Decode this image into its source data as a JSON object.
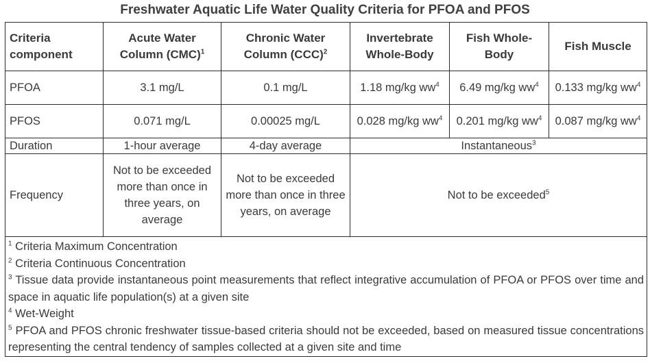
{
  "title": "Freshwater Aquatic Life Water Quality Criteria for PFOA and PFOS",
  "headers": {
    "component": "Criteria component",
    "acute": "Acute Water Column (CMC)",
    "acute_sup": "1",
    "chronic": "Chronic Water Column (CCC)",
    "chronic_sup": "2",
    "invert": "Invertebrate Whole-Body",
    "fish_whole": "Fish Whole-Body",
    "fish_muscle": "Fish Muscle"
  },
  "rows": {
    "pfoa": {
      "label": "PFOA",
      "acute": "3.1 mg/L",
      "chronic": "0.1 mg/L",
      "invert": "1.18 mg/kg ww",
      "fish_whole": "6.49 mg/kg ww",
      "fish_muscle": "0.133 mg/kg ww",
      "sup": "4"
    },
    "pfos": {
      "label": "PFOS",
      "acute": "0.071 mg/L",
      "chronic": "0.00025 mg/L",
      "invert": "0.028 mg/kg ww",
      "fish_whole": "0.201 mg/kg ww",
      "fish_muscle": "0.087 mg/kg ww",
      "sup": "4"
    },
    "duration": {
      "label": "Duration",
      "acute": "1-hour average",
      "chronic": "4-day average",
      "tissue": "Instantaneous",
      "tissue_sup": "3"
    },
    "frequency": {
      "label": "Frequency",
      "acute": "Not to be exceeded more than once in three years, on average",
      "chronic": "Not to be exceeded more than once in three years, on average",
      "tissue": "Not to be exceeded",
      "tissue_sup": "5"
    }
  },
  "footnotes": [
    {
      "num": "1",
      "text": "Criteria Maximum Concentration"
    },
    {
      "num": "2",
      "text": "Criteria Continuous Concentration"
    },
    {
      "num": "3",
      "text": "Tissue data provide instantaneous point measurements that reflect integrative accumulation of PFOA or PFOS over time and space in aquatic life population(s) at a given site"
    },
    {
      "num": "4",
      "text": "Wet-Weight"
    },
    {
      "num": "5",
      "text": "PFOA and PFOS chronic freshwater tissue-based criteria should not be exceeded, based on measured tissue concentrations representing the central tendency of samples collected at a given site and time"
    }
  ]
}
